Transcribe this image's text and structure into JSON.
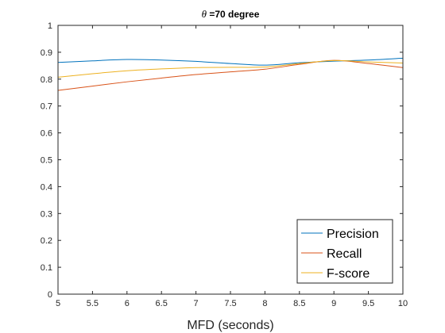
{
  "chart_data": {
    "type": "line",
    "title_symbol": "θ",
    "title": " =70 degree",
    "xlabel": "MFD (seconds)",
    "ylabel": "",
    "xlim": [
      5,
      10
    ],
    "ylim": [
      0,
      1
    ],
    "x_ticks": [
      5,
      5.5,
      6,
      6.5,
      7,
      7.5,
      8,
      8.5,
      9,
      9.5,
      10
    ],
    "x_tick_labels": [
      "5",
      "5.5",
      "6",
      "6.5",
      "7",
      "7.5",
      "8",
      "8.5",
      "9",
      "9.5",
      "10"
    ],
    "y_ticks": [
      0,
      0.1,
      0.2,
      0.3,
      0.4,
      0.5,
      0.6,
      0.7,
      0.8,
      0.9,
      1
    ],
    "y_tick_labels": [
      "0",
      "0.1",
      "0.2",
      "0.3",
      "0.4",
      "0.5",
      "0.6",
      "0.7",
      "0.8",
      "0.9",
      "1"
    ],
    "grid": false,
    "legend_position": "bottom-right",
    "x": [
      5,
      5.5,
      6,
      6.5,
      7,
      7.5,
      8,
      8.5,
      9,
      9.5,
      10
    ],
    "series": [
      {
        "name": "Precision",
        "color": "#0072BD",
        "values": [
          0.862,
          0.868,
          0.873,
          0.871,
          0.866,
          0.858,
          0.852,
          0.861,
          0.867,
          0.871,
          0.878
        ]
      },
      {
        "name": "Recall",
        "color": "#D95319",
        "values": [
          0.758,
          0.774,
          0.79,
          0.804,
          0.817,
          0.827,
          0.837,
          0.855,
          0.87,
          0.858,
          0.843
        ]
      },
      {
        "name": "F-score",
        "color": "#EDB120",
        "values": [
          0.807,
          0.82,
          0.831,
          0.838,
          0.843,
          0.844,
          0.845,
          0.858,
          0.869,
          0.864,
          0.86
        ]
      }
    ]
  }
}
